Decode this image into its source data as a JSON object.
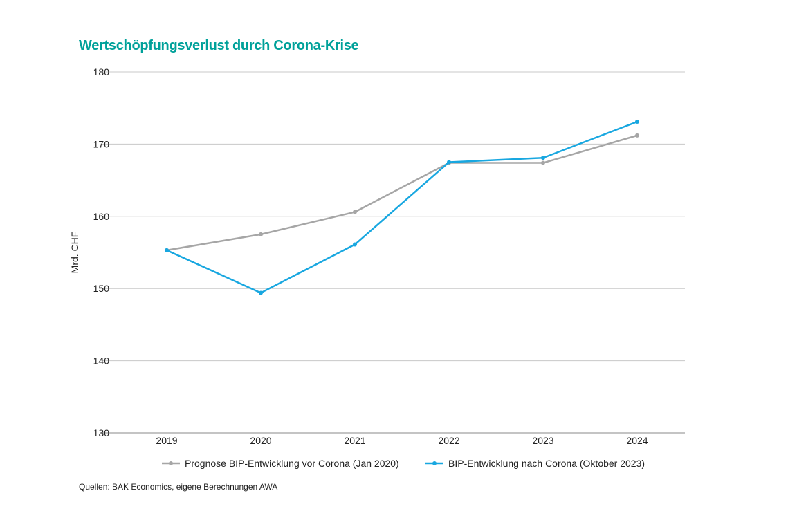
{
  "chart_data": {
    "type": "line",
    "title": "Wertschöpfungsverlust durch Corona-Krise",
    "ylabel": "Mrd. CHF",
    "xlabel": "",
    "categories": [
      "2019",
      "2020",
      "2021",
      "2022",
      "2023",
      "2024"
    ],
    "ylim": [
      130,
      180
    ],
    "yticks": [
      130,
      140,
      150,
      160,
      170,
      180
    ],
    "grid": true,
    "legend_position": "bottom",
    "series": [
      {
        "name": "Prognose BIP-Entwicklung vor Corona (Jan 2020)",
        "color": "#a6a6a6",
        "values": [
          155.3,
          157.5,
          160.6,
          167.4,
          167.4,
          171.2
        ]
      },
      {
        "name": "BIP-Entwicklung nach Corona (Oktober 2023)",
        "color": "#18a7e0",
        "values": [
          155.3,
          149.4,
          156.1,
          167.5,
          168.1,
          173.1
        ]
      }
    ]
  },
  "source": "Quellen: BAK Economics, eigene Berechnungen AWA",
  "title_color": "#00a19a"
}
